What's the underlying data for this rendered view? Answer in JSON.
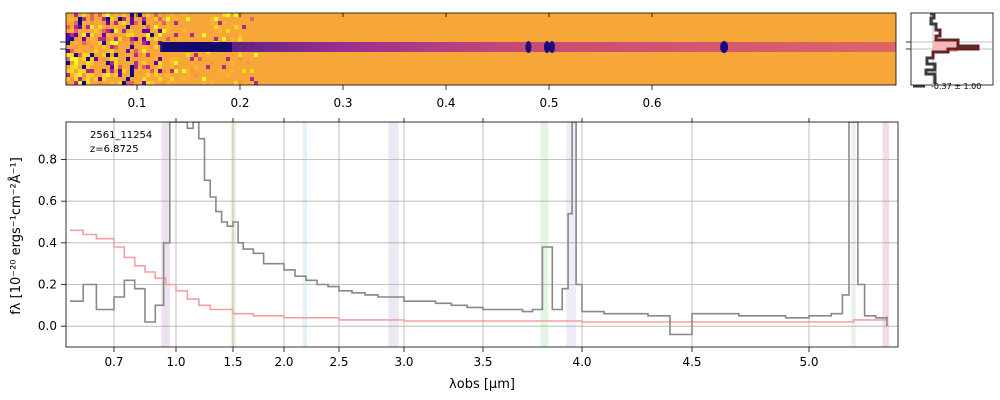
{
  "chart_data": [
    {
      "panel": "2d-spectrum",
      "type": "heatmap",
      "colormap": "plasma",
      "xticks": [
        0.1,
        0.2,
        0.3,
        0.4,
        0.5,
        0.6
      ],
      "xtick_labels": [
        "0.1",
        "0.2",
        "0.3",
        "0.4",
        "0.5",
        "0.6"
      ],
      "trace_features": [
        {
          "x": 0.13,
          "kind": "trace-start"
        },
        {
          "x": 0.48,
          "kind": "emission-spot"
        },
        {
          "x": 0.5,
          "kind": "emission-spot"
        },
        {
          "x": 0.5,
          "kind": "emission-spot"
        },
        {
          "x": 0.67,
          "kind": "emission-spot"
        }
      ]
    },
    {
      "panel": "spatial-profile",
      "type": "line",
      "annotation": "-0.37 ± 1.00"
    },
    {
      "panel": "1d-spectrum",
      "type": "line",
      "xlabel": "λobs [µm]",
      "ylabel": "fλ [10⁻²⁰ ergs⁻¹cm⁻²Å⁻¹]",
      "ylim": [
        -0.1,
        0.98
      ],
      "yticks": [
        0.0,
        0.2,
        0.4,
        0.6,
        0.8
      ],
      "ytick_labels": [
        "0.0",
        "0.2",
        "0.4",
        "0.6",
        "0.8"
      ],
      "xticks": [
        0.7,
        1.0,
        1.5,
        2.0,
        2.5,
        3.0,
        3.5,
        4.0,
        4.5,
        5.0
      ],
      "xtick_labels": [
        "0.7",
        "1.0",
        "1.5",
        "2.0",
        "2.5",
        "3.0",
        "3.5",
        "4.0",
        "4.5",
        "5.0"
      ],
      "annotations": [
        "2561_11254",
        "z=6.8725"
      ],
      "grid": true,
      "series": [
        {
          "color": "#888888",
          "x": [
            0.6,
            0.63,
            0.66,
            0.7,
            0.75,
            0.8,
            0.85,
            0.9,
            0.94,
            0.97,
            1.0,
            1.05,
            1.1,
            1.15,
            1.2,
            1.25,
            1.3,
            1.35,
            1.4,
            1.45,
            1.5,
            1.55,
            1.6,
            1.7,
            1.8,
            1.9,
            2.0,
            2.1,
            2.2,
            2.3,
            2.4,
            2.5,
            2.6,
            2.7,
            2.8,
            2.9,
            3.0,
            3.1,
            3.2,
            3.3,
            3.4,
            3.5,
            3.6,
            3.7,
            3.75,
            3.8,
            3.85,
            3.9,
            3.93,
            3.95,
            3.97,
            4.0,
            4.1,
            4.2,
            4.3,
            4.35,
            4.4,
            4.5,
            4.6,
            4.7,
            4.8,
            4.9,
            5.0,
            5.1,
            5.15,
            5.18,
            5.2,
            5.22,
            5.25,
            5.3,
            5.35
          ],
          "y": [
            0.12,
            0.2,
            0.08,
            0.14,
            0.22,
            0.18,
            0.02,
            0.1,
            0.4,
            0.98,
            0.98,
            0.98,
            0.95,
            0.98,
            0.9,
            0.7,
            0.62,
            0.55,
            0.5,
            0.48,
            0.5,
            0.4,
            0.37,
            0.35,
            0.3,
            0.3,
            0.27,
            0.24,
            0.22,
            0.2,
            0.19,
            0.17,
            0.16,
            0.15,
            0.14,
            0.14,
            0.12,
            0.12,
            0.11,
            0.1,
            0.09,
            0.08,
            0.08,
            0.07,
            0.08,
            0.38,
            0.08,
            0.18,
            0.54,
            0.98,
            0.2,
            0.07,
            0.06,
            0.06,
            0.05,
            0.05,
            -0.04,
            0.06,
            0.06,
            0.05,
            0.05,
            0.04,
            0.05,
            0.06,
            0.15,
            0.98,
            0.98,
            0.2,
            0.05,
            0.04,
            0.0
          ]
        },
        {
          "color": "#f5a0a0",
          "x": [
            0.6,
            0.63,
            0.66,
            0.7,
            0.75,
            0.8,
            0.85,
            0.9,
            0.95,
            1.0,
            1.1,
            1.2,
            1.3,
            1.5,
            1.7,
            2.0,
            2.5,
            3.0,
            3.5,
            4.0,
            4.5,
            5.0,
            5.2,
            5.35
          ],
          "y": [
            0.46,
            0.44,
            0.42,
            0.38,
            0.33,
            0.29,
            0.26,
            0.23,
            0.2,
            0.17,
            0.13,
            0.1,
            0.08,
            0.06,
            0.05,
            0.04,
            0.03,
            0.025,
            0.025,
            0.02,
            0.02,
            0.02,
            0.03,
            0.05
          ]
        }
      ],
      "shaded_bands": [
        {
          "x0": 0.93,
          "x1": 0.97,
          "color": "#b070c0"
        },
        {
          "x0": 1.48,
          "x1": 1.53,
          "color": "#b0c060"
        },
        {
          "x0": 2.17,
          "x1": 2.21,
          "color": "#80c0e0"
        },
        {
          "x0": 2.88,
          "x1": 2.96,
          "color": "#a0a0d0"
        },
        {
          "x0": 3.79,
          "x1": 3.83,
          "color": "#80d080"
        },
        {
          "x0": 3.92,
          "x1": 3.97,
          "color": "#b0b0e0"
        },
        {
          "x0": 5.19,
          "x1": 5.21,
          "color": "#a0c090"
        },
        {
          "x0": 5.33,
          "x1": 5.36,
          "color": "#d06070"
        }
      ]
    }
  ]
}
